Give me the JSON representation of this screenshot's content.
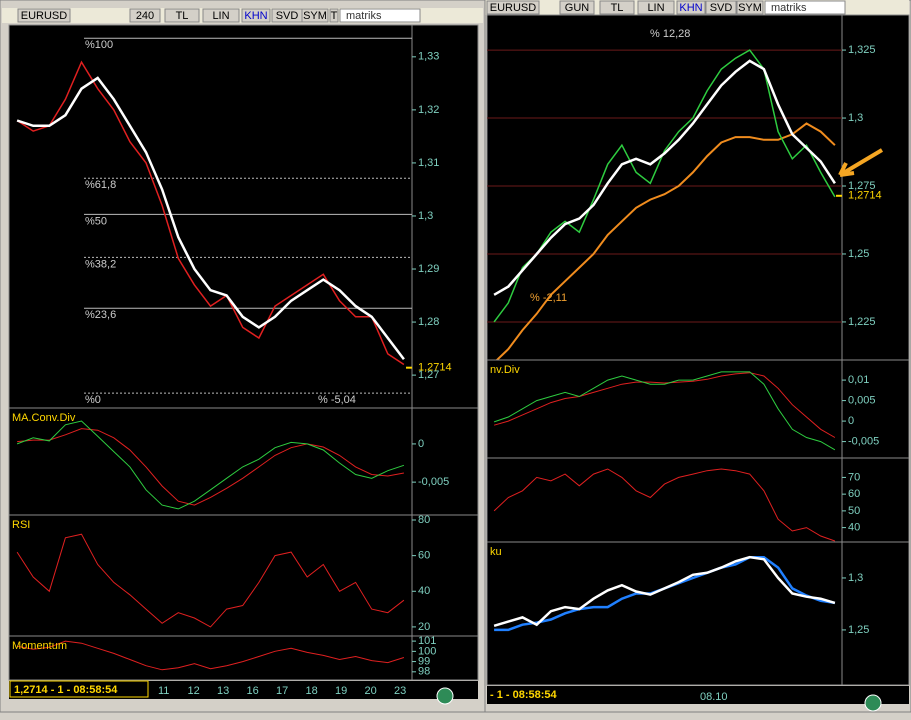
{
  "left": {
    "toolbar": [
      "EURUSD",
      "240",
      "TL",
      "LIN",
      "KHN",
      "SVD",
      "SYM",
      "T"
    ],
    "brand": "matriks",
    "main": {
      "ylim": [
        1.2638,
        1.336
      ],
      "yticks": [
        {
          "value": 1.33,
          "label": "1,33"
        },
        {
          "value": 1.32,
          "label": "1,32"
        },
        {
          "value": 1.31,
          "label": "1,31"
        },
        {
          "value": 1.3,
          "label": "1,3"
        },
        {
          "value": 1.29,
          "label": "1,29"
        },
        {
          "value": 1.28,
          "label": "1,28"
        },
        {
          "value": 1.27,
          "label": "1,27"
        }
      ],
      "fib": [
        {
          "value": 1.3335,
          "label": "%100"
        },
        {
          "value": 1.3071,
          "label": "%61,8"
        },
        {
          "value": 1.3003,
          "label": "%50"
        },
        {
          "value": 1.2922,
          "label": "%38,2"
        },
        {
          "value": 1.2826,
          "label": "%23,6"
        },
        {
          "value": 1.2666,
          "label": "%0"
        }
      ],
      "note": "% -5,04",
      "last": {
        "value": 1.2714,
        "label": "1,2714"
      },
      "close": [
        1.318,
        1.316,
        1.317,
        1.322,
        1.329,
        1.324,
        1.32,
        1.314,
        1.31,
        1.302,
        1.292,
        1.287,
        1.283,
        1.285,
        1.279,
        1.277,
        1.283,
        1.285,
        1.287,
        1.289,
        1.284,
        1.281,
        1.281,
        1.274,
        1.272
      ],
      "ma": [
        1.318,
        1.317,
        1.317,
        1.319,
        1.324,
        1.326,
        1.322,
        1.317,
        1.312,
        1.305,
        1.296,
        1.29,
        1.286,
        1.285,
        1.281,
        1.279,
        1.281,
        1.284,
        1.286,
        1.288,
        1.286,
        1.283,
        1.281,
        1.277,
        1.273
      ]
    },
    "macd": {
      "title": "MA.Conv.Div",
      "ylim": [
        -0.0093,
        0.0047
      ],
      "yticks": [
        0,
        {
          "value": -0.005,
          "label": "-0,005"
        }
      ],
      "macd": [
        0,
        0.0008,
        0.0004,
        0.0025,
        0.003,
        0.001,
        -0.001,
        -0.003,
        -0.006,
        -0.008,
        -0.0085,
        -0.0075,
        -0.006,
        -0.0045,
        -0.003,
        -0.002,
        -0.0005,
        0.0002,
        0,
        -0.0008,
        -0.0025,
        -0.004,
        -0.0045,
        -0.0035,
        -0.0028
      ],
      "signal": [
        0.0003,
        0.0005,
        0.0005,
        0.0012,
        0.002,
        0.0018,
        0.0008,
        -0.0008,
        -0.003,
        -0.0055,
        -0.0075,
        -0.008,
        -0.007,
        -0.0058,
        -0.0045,
        -0.003,
        -0.0015,
        -0.0005,
        0,
        -0.0004,
        -0.0015,
        -0.003,
        -0.004,
        -0.0042,
        -0.0038
      ]
    },
    "rsi": {
      "title": "RSI",
      "ylim": [
        14.9,
        82.8
      ],
      "yticks": [
        80,
        60,
        40,
        20
      ],
      "rsi": [
        62,
        48,
        40,
        70,
        72,
        55,
        45,
        38,
        30,
        22,
        28,
        25,
        20,
        30,
        32,
        45,
        60,
        62,
        48,
        55,
        40,
        45,
        30,
        28,
        35
      ]
    },
    "momentum": {
      "title": "Momentum",
      "ylim": [
        97.2,
        101.5
      ],
      "yticks": [
        101,
        100,
        99,
        98
      ],
      "momentum": [
        100.5,
        100.2,
        100.4,
        101,
        100.8,
        100.3,
        99.8,
        99.2,
        98.6,
        98.2,
        98.4,
        98.8,
        98.3,
        98.6,
        99,
        99.5,
        100,
        100.3,
        99.9,
        99.6,
        99.2,
        99.5,
        99.1,
        98.9,
        99.4
      ]
    },
    "status": "1,2714 - 1 - 08:58:54",
    "dates": [
      "11",
      "12",
      "13",
      "16",
      "17",
      "18",
      "19",
      "20",
      "23"
    ]
  },
  "right": {
    "toolbar": [
      "EURUSD",
      "GUN",
      "TL",
      "LIN",
      "KHN",
      "SVD",
      "SYM"
    ],
    "brand": "matriks",
    "main": {
      "ylim": [
        1.211,
        1.3379
      ],
      "yticks": [
        {
          "value": 1.325,
          "label": "1,325"
        },
        {
          "value": 1.3,
          "label": "1,3"
        },
        {
          "value": 1.275,
          "label": "1,275"
        },
        {
          "value": 1.25,
          "label": "1,25"
        },
        {
          "value": 1.225,
          "label": "1,225"
        }
      ],
      "note": "% 12,28",
      "note2": "% -2,11",
      "last": {
        "value": 1.2714,
        "label": "1,2714"
      },
      "close": [
        1.225,
        1.232,
        1.245,
        1.25,
        1.258,
        1.262,
        1.258,
        1.27,
        1.283,
        1.29,
        1.28,
        1.276,
        1.288,
        1.295,
        1.3,
        1.31,
        1.318,
        1.322,
        1.325,
        1.318,
        1.295,
        1.285,
        1.29,
        1.28,
        1.271
      ],
      "ma": [
        1.235,
        1.238,
        1.244,
        1.25,
        1.256,
        1.261,
        1.263,
        1.268,
        1.276,
        1.283,
        1.285,
        1.283,
        1.287,
        1.292,
        1.298,
        1.305,
        1.312,
        1.317,
        1.321,
        1.318,
        1.305,
        1.294,
        1.289,
        1.284,
        1.276
      ],
      "slow": [
        1.21,
        1.215,
        1.222,
        1.228,
        1.235,
        1.24,
        1.245,
        1.25,
        1.257,
        1.262,
        1.267,
        1.27,
        1.272,
        1.275,
        1.28,
        1.286,
        1.291,
        1.293,
        1.293,
        1.292,
        1.292,
        1.294,
        1.298,
        1.295,
        1.29
      ]
    },
    "macd": {
      "title": "nv.Div",
      "ylim": [
        -0.009,
        0.0149
      ],
      "yticks": [
        {
          "value": 0.01,
          "label": "0,01"
        },
        {
          "value": 0.005,
          "label": "0,005"
        },
        0,
        {
          "value": -0.005,
          "label": "-0,005"
        }
      ],
      "macd": [
        -0.0002,
        0.001,
        0.003,
        0.005,
        0.006,
        0.007,
        0.006,
        0.008,
        0.01,
        0.011,
        0.01,
        0.009,
        0.009,
        0.01,
        0.01,
        0.011,
        0.012,
        0.012,
        0.012,
        0.009,
        0.003,
        -0.002,
        -0.004,
        -0.005,
        -0.007
      ],
      "signal": [
        -0.001,
        0,
        0.0015,
        0.003,
        0.0045,
        0.0055,
        0.006,
        0.007,
        0.008,
        0.009,
        0.0095,
        0.0095,
        0.0093,
        0.0095,
        0.0097,
        0.0102,
        0.011,
        0.0115,
        0.0118,
        0.011,
        0.008,
        0.004,
        0.001,
        -0.002,
        -0.004
      ]
    },
    "rsi": {
      "ylim": [
        31.4,
        81.6
      ],
      "yticks": [
        70,
        60,
        50,
        40
      ],
      "rsi": [
        50,
        58,
        62,
        70,
        68,
        72,
        65,
        72,
        75,
        70,
        62,
        58,
        66,
        70,
        72,
        74,
        75,
        74,
        72,
        62,
        45,
        38,
        40,
        35,
        32
      ]
    },
    "ichimoku": {
      "title": "ku",
      "ylim": [
        1.197,
        1.3346
      ],
      "yticks": [
        {
          "value": 1.3,
          "label": "1,3"
        },
        {
          "value": 1.25,
          "label": "1,25"
        }
      ],
      "price": [
        1.254,
        1.258,
        1.262,
        1.255,
        1.268,
        1.272,
        1.27,
        1.28,
        1.288,
        1.293,
        1.287,
        1.284,
        1.29,
        1.296,
        1.303,
        1.305,
        1.31,
        1.316,
        1.32,
        1.318,
        1.3,
        1.285,
        1.282,
        1.28,
        1.276
      ],
      "kijun": [
        1.25,
        1.25,
        1.255,
        1.257,
        1.26,
        1.266,
        1.27,
        1.272,
        1.272,
        1.28,
        1.285,
        1.285,
        1.29,
        1.295,
        1.3,
        1.305,
        1.31,
        1.313,
        1.32,
        1.32,
        1.31,
        1.29,
        1.283,
        1.278,
        1.276
      ]
    },
    "status": "- 1 - 08:58:54",
    "dates": [
      "08.10"
    ]
  }
}
